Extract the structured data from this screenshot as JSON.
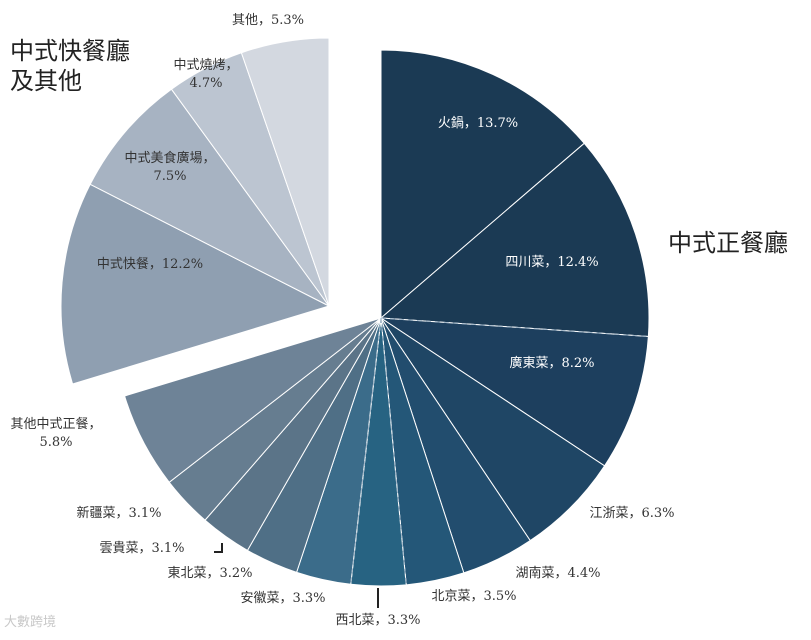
{
  "chart_data": {
    "type": "pie",
    "groups": [
      {
        "name": "中式正餐廳",
        "exploded": false
      },
      {
        "name": "中式快餐廳\n及其他",
        "exploded": true
      }
    ],
    "slices": [
      {
        "label": "火鍋",
        "value": 13.7,
        "value_label": "13.7%",
        "group": 0,
        "color": "#1b3a54"
      },
      {
        "label": "四川菜",
        "value": 12.4,
        "value_label": "12.4%",
        "group": 0,
        "color": "#1b3a54"
      },
      {
        "label": "廣東菜",
        "value": 8.2,
        "value_label": "8.2%",
        "group": 0,
        "color": "#1d3f5e"
      },
      {
        "label": "江浙菜",
        "value": 6.3,
        "value_label": "6.3%",
        "group": 0,
        "color": "#1f4665"
      },
      {
        "label": "湖南菜",
        "value": 4.4,
        "value_label": "4.4%",
        "group": 0,
        "color": "#224d6e"
      },
      {
        "label": "北京菜",
        "value": 3.5,
        "value_label": "3.5%",
        "group": 0,
        "color": "#245778"
      },
      {
        "label": "西北菜",
        "value": 3.3,
        "value_label": "3.3%",
        "group": 0,
        "color": "#276382"
      },
      {
        "label": "安徽菜",
        "value": 3.3,
        "value_label": "3.3%",
        "group": 0,
        "color": "#3b6c8a"
      },
      {
        "label": "東北菜",
        "value": 3.2,
        "value_label": "3.2%",
        "group": 0,
        "color": "#4f6f86"
      },
      {
        "label": "雲貴菜",
        "value": 3.1,
        "value_label": "3.1%",
        "group": 0,
        "color": "#5b7488"
      },
      {
        "label": "新疆菜",
        "value": 3.1,
        "value_label": "3.1%",
        "group": 0,
        "color": "#667d90"
      },
      {
        "label": "其他中式正餐",
        "value": 5.8,
        "value_label": "5.8%",
        "group": 0,
        "color": "#6e8397"
      },
      {
        "label": "中式快餐",
        "value": 12.2,
        "value_label": "12.2%",
        "group": 1,
        "color": "#8f9fb1"
      },
      {
        "label": "中式美食廣場",
        "value": 7.5,
        "value_label": "7.5%",
        "group": 1,
        "color": "#a7b3c2"
      },
      {
        "label": "中式燒烤",
        "value": 4.7,
        "value_label": "4.7%",
        "group": 1,
        "color": "#bcc5d1"
      },
      {
        "label": "其他",
        "value": 5.3,
        "value_label": "5.3%",
        "group": 1,
        "color": "#d3d8e0"
      }
    ],
    "separator": "，",
    "watermark": "大數跨境"
  }
}
